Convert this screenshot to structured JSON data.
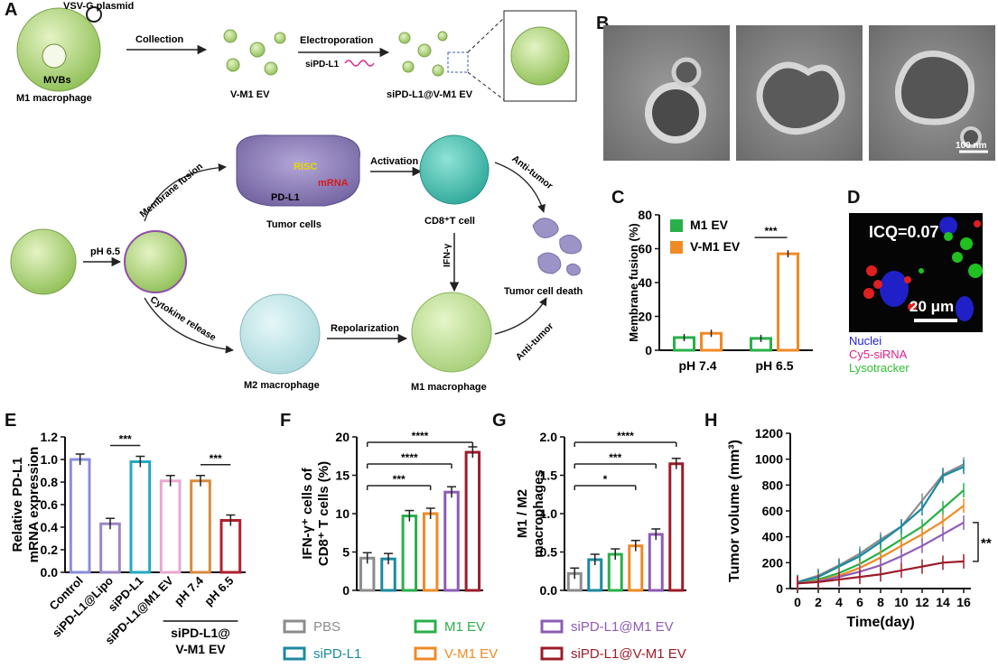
{
  "panels": {
    "A": "A",
    "B": "B",
    "C": "C",
    "D": "D",
    "E": "E",
    "F": "F",
    "G": "G",
    "H": "H"
  },
  "scheme": {
    "vsvg_label": "VSV-G plasmid",
    "mvbs_label": "MVBs",
    "m1_macrophage_label": "M1 macrophage",
    "collection_label": "Collection",
    "vm1ev_label": "V-M1 EV",
    "electroporation_label": "Electroporation",
    "sipdl1_label": "siPD-L1",
    "product_label": "siPD-L1@V-M1 EV",
    "ph_label": "pH 6.5",
    "membrane_fusion_label": "Membrane fusion",
    "cytokine_release_label": "Cytokine release",
    "risc_label": "RISC",
    "mrna_label": "mRNA",
    "pdl1_label": "PD-L1",
    "tumor_cells_label": "Tumor cells",
    "activation_label": "Activation",
    "cd8_label": "CD8⁺T cell",
    "ifn_label": "IFN-γ",
    "antitumor_label": "Anti-tumor",
    "tumor_death_label": "Tumor cell death",
    "m2_label": "M2 macrophage",
    "repolarization_label": "Repolarization",
    "m1_bottom_label": "M1 macrophage"
  },
  "micrographs": {
    "scale_bar_label": "100 nm"
  },
  "confocal": {
    "icq_label": "ICQ=0.07",
    "scale_label": "20 μm",
    "legend": [
      {
        "text": "Nuclei",
        "color": "#1f1fd6"
      },
      {
        "text": "Cy5-siRNA",
        "color": "#e0208a"
      },
      {
        "text": "Lysotracker",
        "color": "#2fc02f"
      }
    ]
  },
  "legend_bottom": [
    {
      "name": "PBS",
      "color": "#8c8c8c"
    },
    {
      "name": "siPD-L1",
      "color": "#1b8aa0"
    },
    {
      "name": "M1 EV",
      "color": "#29b04a"
    },
    {
      "name": "V-M1 EV",
      "color": "#f08a24"
    },
    {
      "name": "siPD-L1@M1 EV",
      "color": "#8e5bb5"
    },
    {
      "name": "siPD-L1@V-M1 EV",
      "color": "#9c1c2a"
    }
  ],
  "chart_data": [
    {
      "id": "C",
      "type": "bar",
      "ylabel": "Membrane fusion (%)",
      "categories": [
        "pH 7.4",
        "pH 6.5"
      ],
      "ylim": [
        0,
        80
      ],
      "yticks": [
        0,
        20,
        40,
        60,
        80
      ],
      "legend_position": "top-left",
      "series": [
        {
          "name": "M1 EV",
          "color": "#29b04a",
          "values": [
            7.5,
            7
          ]
        },
        {
          "name": "V-M1 EV",
          "color": "#f08a24",
          "values": [
            10,
            57
          ]
        }
      ],
      "significance": [
        {
          "label": "***",
          "between": "pH 6.5"
        }
      ]
    },
    {
      "id": "E",
      "type": "bar",
      "ylabel_lines": [
        "Relative PD-L1",
        "mRNA expression"
      ],
      "ylim": [
        0,
        1.2
      ],
      "yticks": [
        "0.0",
        "0.2",
        "0.4",
        "0.6",
        "0.8",
        "1.0",
        "1.2"
      ],
      "categories": [
        "Control",
        "siPD-L1@Lipo",
        "siPD-L1",
        "siPD-L1@M1 EV",
        "pH 7.4",
        "pH 6.5"
      ],
      "values": [
        1.0,
        0.43,
        0.98,
        0.81,
        0.81,
        0.46
      ],
      "colors": [
        "#8b8de0",
        "#9b86c7",
        "#22a9c0",
        "#e8a8d0",
        "#d98a3c",
        "#b02030"
      ],
      "group_label_lines": [
        "siPD-L1@",
        "V-M1 EV"
      ],
      "significance": [
        {
          "label": "***",
          "from": 1,
          "to": 2
        },
        {
          "label": "***",
          "from": 4,
          "to": 5
        }
      ]
    },
    {
      "id": "F",
      "type": "bar",
      "ylabel_lines": [
        "IFN-γ⁺ cells of",
        "CD8⁺ T cells (%)"
      ],
      "ylim": [
        0,
        20
      ],
      "yticks": [
        0,
        5,
        10,
        15,
        20
      ],
      "categories": [
        "PBS",
        "siPD-L1",
        "M1 EV",
        "V-M1 EV",
        "siPD-L1@M1 EV",
        "siPD-L1@V-M1 EV"
      ],
      "values": [
        4.2,
        4.1,
        9.7,
        10.0,
        12.8,
        18.0
      ],
      "significance": [
        {
          "label": "***",
          "from": 0,
          "to": 3
        },
        {
          "label": "****",
          "from": 0,
          "to": 4
        },
        {
          "label": "****",
          "from": 0,
          "to": 5
        }
      ]
    },
    {
      "id": "G",
      "type": "bar",
      "ylabel_lines": [
        "M1 / M2",
        "macrophages"
      ],
      "ylim": [
        0,
        2.0
      ],
      "yticks": [
        "0.0",
        "0.5",
        "1.0",
        "1.5",
        "2.0"
      ],
      "categories": [
        "PBS",
        "siPD-L1",
        "M1 EV",
        "V-M1 EV",
        "siPD-L1@M1 EV",
        "siPD-L1@V-M1 EV"
      ],
      "values": [
        0.22,
        0.4,
        0.47,
        0.58,
        0.73,
        1.65
      ],
      "significance": [
        {
          "label": "*",
          "from": 0,
          "to": 3
        },
        {
          "label": "***",
          "from": 0,
          "to": 4
        },
        {
          "label": "****",
          "from": 0,
          "to": 5
        }
      ]
    },
    {
      "id": "H",
      "type": "line",
      "xlabel": "Time(day)",
      "ylabel": "Tumor volume (mm³)",
      "x": [
        0,
        2,
        4,
        6,
        8,
        10,
        12,
        14,
        16
      ],
      "xticks": [
        0,
        2,
        4,
        6,
        8,
        10,
        12,
        14,
        16
      ],
      "ylim": [
        0,
        1200
      ],
      "yticks": [
        0,
        200,
        400,
        600,
        800,
        1000,
        1200
      ],
      "series": [
        {
          "name": "PBS",
          "color": "#8c8c8c",
          "values": [
            50,
            100,
            180,
            270,
            380,
            480,
            680,
            880,
            960
          ]
        },
        {
          "name": "siPD-L1",
          "color": "#1b8aa0",
          "values": [
            50,
            90,
            170,
            250,
            360,
            480,
            620,
            870,
            940
          ]
        },
        {
          "name": "M1 EV",
          "color": "#29b04a",
          "values": [
            40,
            70,
            120,
            190,
            280,
            380,
            480,
            620,
            760
          ]
        },
        {
          "name": "V-M1 EV",
          "color": "#f08a24",
          "values": [
            40,
            60,
            100,
            160,
            240,
            330,
            420,
            520,
            640
          ]
        },
        {
          "name": "siPD-L1@M1 EV",
          "color": "#8e5bb5",
          "values": [
            40,
            55,
            90,
            130,
            180,
            250,
            330,
            420,
            510
          ]
        },
        {
          "name": "siPD-L1@V-M1 EV",
          "color": "#9c1c2a",
          "values": [
            40,
            50,
            70,
            90,
            110,
            140,
            170,
            200,
            210
          ]
        }
      ],
      "significance": [
        {
          "label": "**"
        }
      ]
    }
  ]
}
